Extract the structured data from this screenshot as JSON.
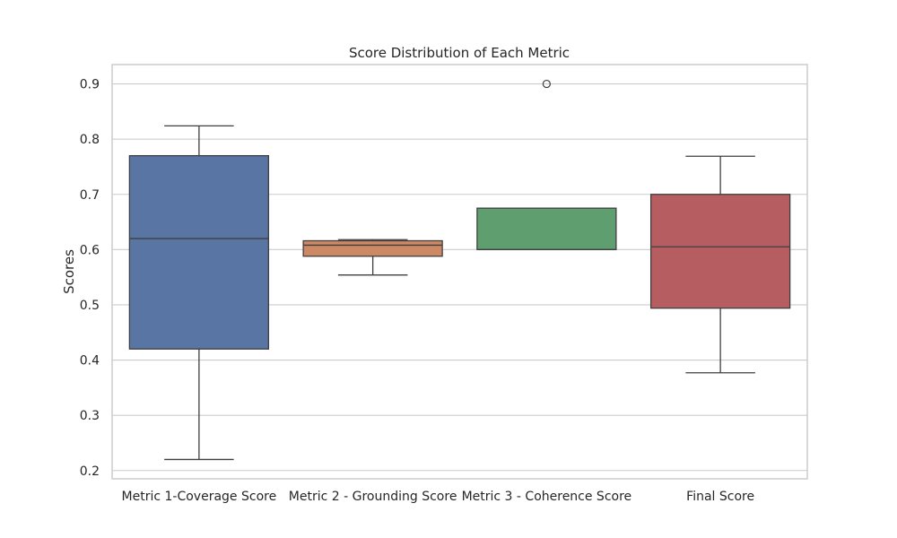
{
  "chart_data": {
    "type": "box",
    "title": "Score Distribution of Each Metric",
    "xlabel": "",
    "ylabel": "Scores",
    "ylim": [
      0.185,
      0.935
    ],
    "yticks": [
      0.2,
      0.3,
      0.4,
      0.5,
      0.6,
      0.7,
      0.8,
      0.9
    ],
    "ytick_labels": [
      "0.2",
      "0.3",
      "0.4",
      "0.5",
      "0.6",
      "0.7",
      "0.8",
      "0.9"
    ],
    "grid": true,
    "categories": [
      "Metric 1-Coverage Score",
      "Metric 2 - Grounding Score",
      "Metric 3 - Coherence Score",
      "Final Score"
    ],
    "boxes": [
      {
        "category": "Metric 1-Coverage Score",
        "whisker_low": 0.22,
        "q1": 0.42,
        "median": 0.62,
        "q3": 0.77,
        "whisker_high": 0.824,
        "outliers": [],
        "color": "#5975a4"
      },
      {
        "category": "Metric 2 - Grounding Score",
        "whisker_low": 0.554,
        "q1": 0.588,
        "median": 0.608,
        "q3": 0.616,
        "whisker_high": 0.618,
        "outliers": [],
        "color": "#cc8963"
      },
      {
        "category": "Metric 3 - Coherence Score",
        "whisker_low": 0.6,
        "q1": 0.6,
        "median": 0.6,
        "q3": 0.675,
        "whisker_high": 0.675,
        "outliers": [
          0.9
        ],
        "color": "#5f9e6e"
      },
      {
        "category": "Final Score",
        "whisker_low": 0.377,
        "q1": 0.494,
        "median": 0.605,
        "q3": 0.7,
        "whisker_high": 0.769,
        "outliers": [],
        "color": "#b55d60"
      }
    ]
  }
}
